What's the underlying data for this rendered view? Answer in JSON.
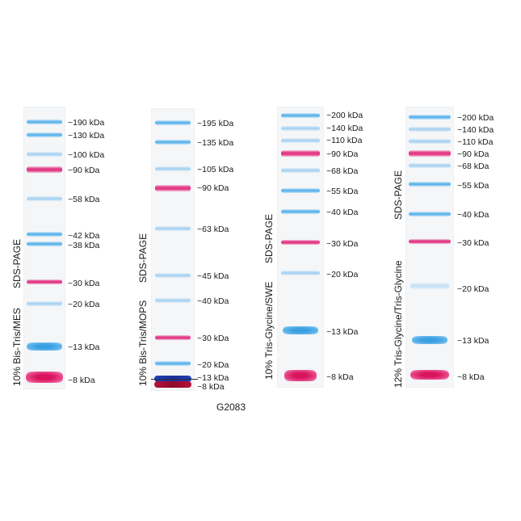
{
  "catalog": "G2083",
  "panels": [
    {
      "title": "10% Bis-Tris/MES",
      "method": "SDS-PAGE",
      "markers": [
        "~190 kDa",
        "~130 kDa",
        "~100 kDa",
        "~90 kDa",
        "~58 kDa",
        "~42 kDa",
        "~38 kDa",
        "~30 kDa",
        "~20 kDa",
        "~13 kDa",
        "~8 kDa"
      ]
    },
    {
      "title": "10% Bis-Tris/MOPS",
      "method": "SDS-PAGE",
      "markers": [
        "~195 kDa",
        "~135 kDa",
        "~105 kDa",
        "~90 kDa",
        "~63 kDa",
        "~45 kDa",
        "~40 kDa",
        "~30 kDa",
        "~20 kDa",
        "~13 kDa",
        "~8 kDa"
      ]
    },
    {
      "title": "10% Tris-Glycine/SWE",
      "method": "SDS-PAGE",
      "markers": [
        "~200 kDa",
        "~140 kDa",
        "~110 kDa",
        "~90 kDa",
        "~68 kDa",
        "~55 kDa",
        "~40 kDa",
        "~30 kDa",
        "~20 kDa",
        "~13 kDa",
        "~8 kDa"
      ]
    },
    {
      "title": "12% Tris-Glycine/Tris-Glycine",
      "method": "SDS-PAGE",
      "markers": [
        "~200 kDa",
        "~140 kDa",
        "~110 kDa",
        "~90 kDa",
        "~68 kDa",
        "~55 kDa",
        "~40 kDa",
        "~30 kDa",
        "~20 kDa",
        "~13 kDa",
        "~8 kDa"
      ]
    }
  ]
}
